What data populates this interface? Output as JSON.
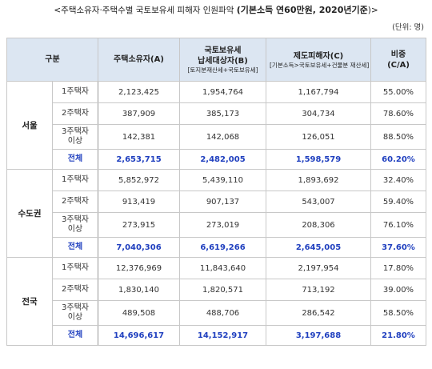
{
  "title": {
    "prefix": "<주택소유자·주택수별 국토보유세 피해자 인원파악 ",
    "highlight": "(기본소득 연60만원, 2020년기준",
    "suffix": ")>"
  },
  "unit": "(단위: 명)",
  "headers": {
    "group": "구분",
    "owners": "주택소유자(A)",
    "taxpayers_line1": "국토보유세",
    "taxpayers_line2": "납세대상자(B)",
    "taxpayers_sub": "[토지분재산세+국토보유세]",
    "victims": "제도피해자(C)",
    "victims_sub": "[기본소득>국토보유세+건물분 재산세]",
    "ratio_line1": "비중",
    "ratio_line2": "(C/A)"
  },
  "regions": [
    {
      "name": "서울",
      "rows": [
        {
          "category": "1주택자",
          "owners": "2,123,425",
          "taxpayers": "1,954,764",
          "victims": "1,167,794",
          "ratio": "55.00%"
        },
        {
          "category": "2주택자",
          "owners": "387,909",
          "taxpayers": "385,173",
          "victims": "304,734",
          "ratio": "78.60%"
        },
        {
          "category": "3주택자\n이상",
          "owners": "142,381",
          "taxpayers": "142,068",
          "victims": "126,051",
          "ratio": "88.50%"
        },
        {
          "category": "전체",
          "owners": "2,653,715",
          "taxpayers": "2,482,005",
          "victims": "1,598,579",
          "ratio": "60.20%"
        }
      ]
    },
    {
      "name": "수도권",
      "rows": [
        {
          "category": "1주택자",
          "owners": "5,852,972",
          "taxpayers": "5,439,110",
          "victims": "1,893,692",
          "ratio": "32.40%"
        },
        {
          "category": "2주택자",
          "owners": "913,419",
          "taxpayers": "907,137",
          "victims": "543,007",
          "ratio": "59.40%"
        },
        {
          "category": "3주택자\n이상",
          "owners": "273,915",
          "taxpayers": "273,019",
          "victims": "208,306",
          "ratio": "76.10%"
        },
        {
          "category": "전체",
          "owners": "7,040,306",
          "taxpayers": "6,619,266",
          "victims": "2,645,005",
          "ratio": "37.60%"
        }
      ]
    },
    {
      "name": "전국",
      "rows": [
        {
          "category": "1주택자",
          "owners": "12,376,969",
          "taxpayers": "11,843,640",
          "victims": "2,197,954",
          "ratio": "17.80%"
        },
        {
          "category": "2주택자",
          "owners": "1,830,140",
          "taxpayers": "1,820,571",
          "victims": "713,192",
          "ratio": "39.00%"
        },
        {
          "category": "3주택자\n이상",
          "owners": "489,508",
          "taxpayers": "488,706",
          "victims": "286,542",
          "ratio": "58.50%"
        },
        {
          "category": "전체",
          "owners": "14,696,617",
          "taxpayers": "14,152,917",
          "victims": "3,197,688",
          "ratio": "21.80%"
        }
      ]
    }
  ]
}
